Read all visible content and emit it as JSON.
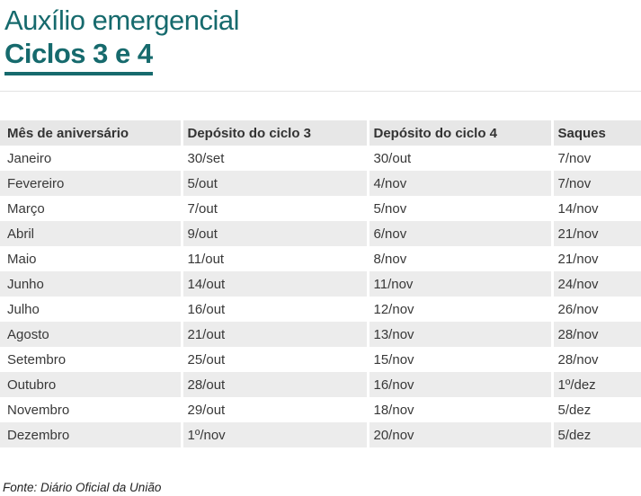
{
  "title": {
    "line1": "Auxílio emergencial",
    "line2": "Ciclos 3 e 4"
  },
  "colors": {
    "accent_teal": "#166a6d",
    "header_bg": "#e7e7e7",
    "stripe_bg": "#ececec",
    "divider": "#e2e2e2",
    "text": "#333333"
  },
  "footer": {
    "source": "Fonte: Diário Oficial da União"
  },
  "chart_data": {
    "type": "table",
    "title": "Auxílio emergencial — Ciclos 3 e 4",
    "columns": [
      "Mês de aniversário",
      "Depósito do ciclo 3",
      "Depósito do ciclo 4",
      "Saques"
    ],
    "rows": [
      [
        "Janeiro",
        "30/set",
        "30/out",
        "7/nov"
      ],
      [
        "Fevereiro",
        "5/out",
        "4/nov",
        "7/nov"
      ],
      [
        "Março",
        "7/out",
        "5/nov",
        "14/nov"
      ],
      [
        "Abril",
        "9/out",
        "6/nov",
        "21/nov"
      ],
      [
        "Maio",
        "11/out",
        "8/nov",
        "21/nov"
      ],
      [
        "Junho",
        "14/out",
        "11/nov",
        "24/nov"
      ],
      [
        "Julho",
        "16/out",
        "12/nov",
        "26/nov"
      ],
      [
        "Agosto",
        "21/out",
        "13/nov",
        "28/nov"
      ],
      [
        "Setembro",
        "25/out",
        "15/nov",
        "28/nov"
      ],
      [
        "Outubro",
        "28/out",
        "16/nov",
        "1º/dez"
      ],
      [
        "Novembro",
        "29/out",
        "18/nov",
        "5/dez"
      ],
      [
        "Dezembro",
        "1º/nov",
        "20/nov",
        "5/dez"
      ]
    ],
    "layout": {
      "stripes": true,
      "header_row": true,
      "legend": "none",
      "grid": "row-stripes"
    },
    "source": "Fonte: Diário Oficial da União"
  }
}
